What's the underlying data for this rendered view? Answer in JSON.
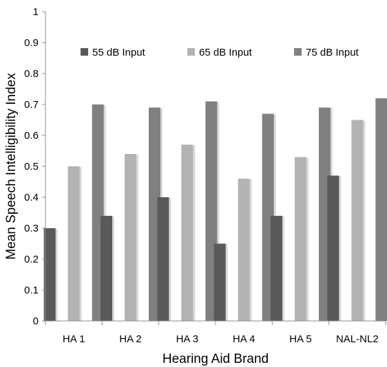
{
  "chart_data": {
    "type": "bar",
    "title": "",
    "xlabel": "Hearing Aid Brand",
    "ylabel": "Mean Speech Intelligibility Index",
    "ylim": [
      0,
      1
    ],
    "yticks": [
      "0",
      "0.1",
      "0.2",
      "0.3",
      "0.4",
      "0.5",
      "0.6",
      "0.7",
      "0.8",
      "0.9",
      "1"
    ],
    "grid": false,
    "legend_position": "top",
    "categories": [
      "HA 1",
      "HA 2",
      "HA 3",
      "HA 4",
      "HA 5",
      "NAL-NL2"
    ],
    "series": [
      {
        "name": "55 dB Input",
        "color": "#595959",
        "values": [
          0.3,
          0.34,
          0.4,
          0.25,
          0.34,
          0.47
        ]
      },
      {
        "name": "65 dB Input",
        "color": "#b3b3b3",
        "values": [
          0.5,
          0.54,
          0.57,
          0.46,
          0.53,
          0.65
        ]
      },
      {
        "name": "75 dB Input",
        "color": "#808080",
        "values": [
          0.7,
          0.69,
          0.71,
          0.67,
          0.69,
          0.72
        ]
      }
    ]
  }
}
